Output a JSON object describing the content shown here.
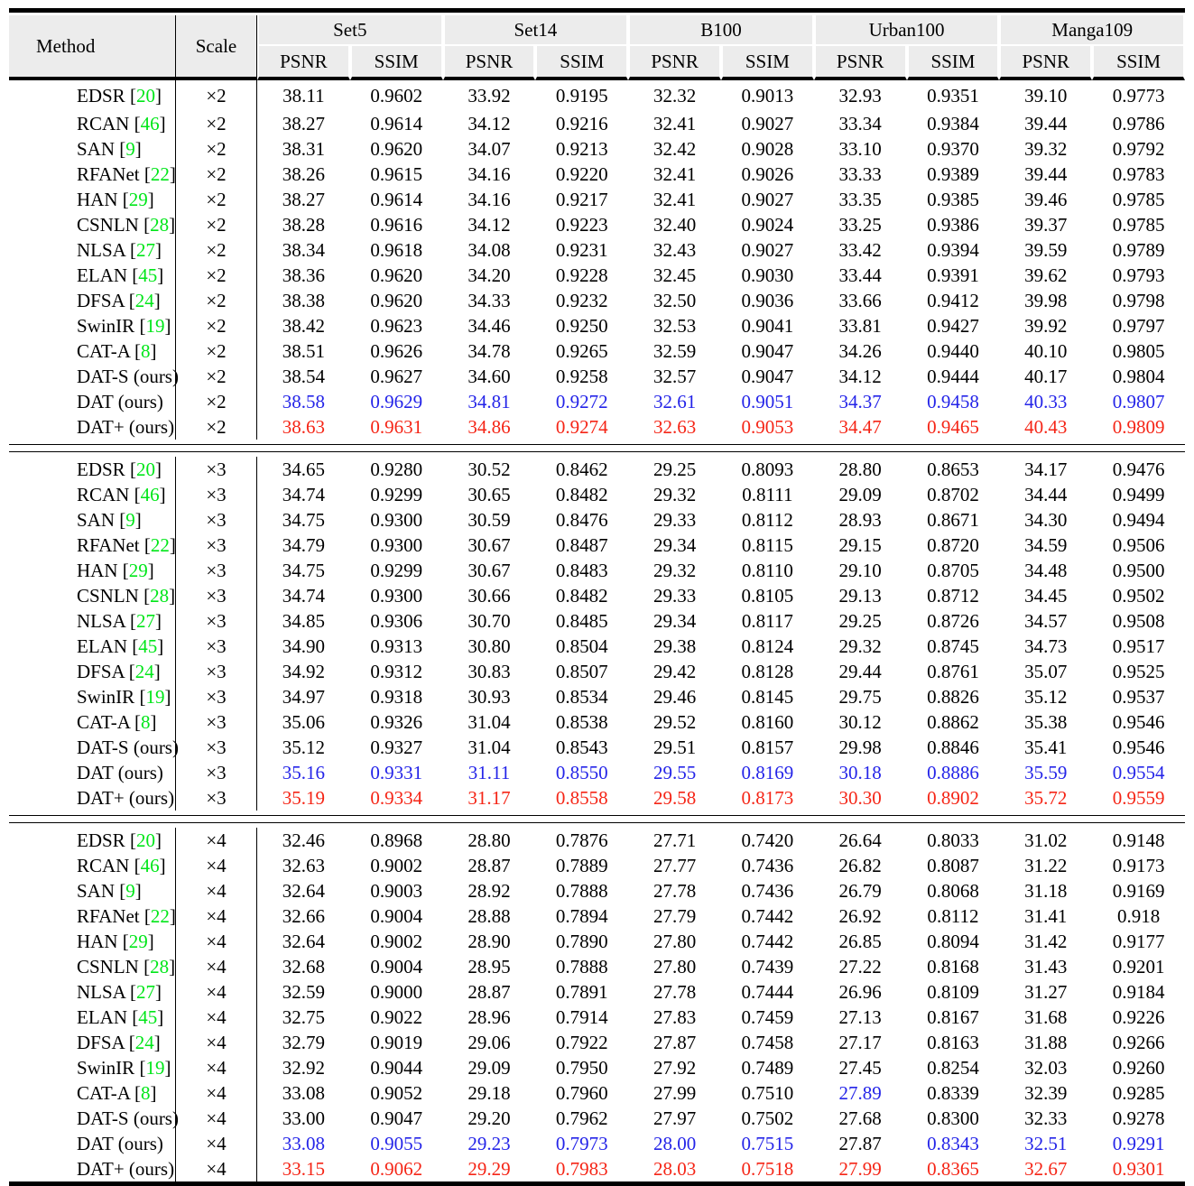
{
  "table": {
    "header": {
      "method": "Method",
      "scale": "Scale",
      "groups": [
        "Set5",
        "Set14",
        "B100",
        "Urban100",
        "Manga109"
      ],
      "metrics": [
        "PSNR",
        "SSIM"
      ]
    },
    "colors": {
      "best": "#f52516",
      "second": "#2424e8",
      "citation": "#00e619",
      "header_bg": "#ececec",
      "rule": "#000000"
    },
    "legend_note": {
      "best_style": "red = best",
      "second_style": "blue = second best"
    },
    "blocks": [
      {
        "scale": "×2",
        "rows": [
          {
            "method": "EDSR",
            "cite": "20",
            "style": "normal",
            "values": [
              "38.11",
              "0.9602",
              "33.92",
              "0.9195",
              "32.32",
              "0.9013",
              "32.93",
              "0.9351",
              "39.10",
              "0.9773"
            ]
          },
          {
            "method": "RCAN",
            "cite": "46",
            "style": "normal",
            "values": [
              "38.27",
              "0.9614",
              "34.12",
              "0.9216",
              "32.41",
              "0.9027",
              "33.34",
              "0.9384",
              "39.44",
              "0.9786"
            ]
          },
          {
            "method": "SAN",
            "cite": "9",
            "style": "normal",
            "values": [
              "38.31",
              "0.9620",
              "34.07",
              "0.9213",
              "32.42",
              "0.9028",
              "33.10",
              "0.9370",
              "39.32",
              "0.9792"
            ]
          },
          {
            "method": "RFANet",
            "cite": "22",
            "style": "normal",
            "values": [
              "38.26",
              "0.9615",
              "34.16",
              "0.9220",
              "32.41",
              "0.9026",
              "33.33",
              "0.9389",
              "39.44",
              "0.9783"
            ]
          },
          {
            "method": "HAN",
            "cite": "29",
            "style": "normal",
            "values": [
              "38.27",
              "0.9614",
              "34.16",
              "0.9217",
              "32.41",
              "0.9027",
              "33.35",
              "0.9385",
              "39.46",
              "0.9785"
            ]
          },
          {
            "method": "CSNLN",
            "cite": "28",
            "style": "normal",
            "values": [
              "38.28",
              "0.9616",
              "34.12",
              "0.9223",
              "32.40",
              "0.9024",
              "33.25",
              "0.9386",
              "39.37",
              "0.9785"
            ]
          },
          {
            "method": "NLSA",
            "cite": "27",
            "style": "normal",
            "values": [
              "38.34",
              "0.9618",
              "34.08",
              "0.9231",
              "32.43",
              "0.9027",
              "33.42",
              "0.9394",
              "39.59",
              "0.9789"
            ]
          },
          {
            "method": "ELAN",
            "cite": "45",
            "style": "normal",
            "values": [
              "38.36",
              "0.9620",
              "34.20",
              "0.9228",
              "32.45",
              "0.9030",
              "33.44",
              "0.9391",
              "39.62",
              "0.9793"
            ]
          },
          {
            "method": "DFSA",
            "cite": "24",
            "style": "normal",
            "values": [
              "38.38",
              "0.9620",
              "34.33",
              "0.9232",
              "32.50",
              "0.9036",
              "33.66",
              "0.9412",
              "39.98",
              "0.9798"
            ]
          },
          {
            "method": "SwinIR",
            "cite": "19",
            "style": "normal",
            "values": [
              "38.42",
              "0.9623",
              "34.46",
              "0.9250",
              "32.53",
              "0.9041",
              "33.81",
              "0.9427",
              "39.92",
              "0.9797"
            ]
          },
          {
            "method": "CAT-A",
            "cite": "8",
            "style": "normal",
            "values": [
              "38.51",
              "0.9626",
              "34.78",
              "0.9265",
              "32.59",
              "0.9047",
              "34.26",
              "0.9440",
              "40.10",
              "0.9805"
            ]
          },
          {
            "method": "DAT-S (ours)",
            "cite": null,
            "style": "normal",
            "values": [
              "38.54",
              "0.9627",
              "34.60",
              "0.9258",
              "32.57",
              "0.9047",
              "34.12",
              "0.9444",
              "40.17",
              "0.9804"
            ]
          },
          {
            "method": "DAT (ours)",
            "cite": null,
            "style": "second",
            "values": [
              "38.58",
              "0.9629",
              "34.81",
              "0.9272",
              "32.61",
              "0.9051",
              "34.37",
              "0.9458",
              "40.33",
              "0.9807"
            ]
          },
          {
            "method": "DAT+ (ours)",
            "cite": null,
            "style": "best",
            "values": [
              "38.63",
              "0.9631",
              "34.86",
              "0.9274",
              "32.63",
              "0.9053",
              "34.47",
              "0.9465",
              "40.43",
              "0.9809"
            ]
          }
        ]
      },
      {
        "scale": "×3",
        "rows": [
          {
            "method": "EDSR",
            "cite": "20",
            "style": "normal",
            "values": [
              "34.65",
              "0.9280",
              "30.52",
              "0.8462",
              "29.25",
              "0.8093",
              "28.80",
              "0.8653",
              "34.17",
              "0.9476"
            ]
          },
          {
            "method": "RCAN",
            "cite": "46",
            "style": "normal",
            "values": [
              "34.74",
              "0.9299",
              "30.65",
              "0.8482",
              "29.32",
              "0.8111",
              "29.09",
              "0.8702",
              "34.44",
              "0.9499"
            ]
          },
          {
            "method": "SAN",
            "cite": "9",
            "style": "normal",
            "values": [
              "34.75",
              "0.9300",
              "30.59",
              "0.8476",
              "29.33",
              "0.8112",
              "28.93",
              "0.8671",
              "34.30",
              "0.9494"
            ]
          },
          {
            "method": "RFANet",
            "cite": "22",
            "style": "normal",
            "values": [
              "34.79",
              "0.9300",
              "30.67",
              "0.8487",
              "29.34",
              "0.8115",
              "29.15",
              "0.8720",
              "34.59",
              "0.9506"
            ]
          },
          {
            "method": "HAN",
            "cite": "29",
            "style": "normal",
            "values": [
              "34.75",
              "0.9299",
              "30.67",
              "0.8483",
              "29.32",
              "0.8110",
              "29.10",
              "0.8705",
              "34.48",
              "0.9500"
            ]
          },
          {
            "method": "CSNLN",
            "cite": "28",
            "style": "normal",
            "values": [
              "34.74",
              "0.9300",
              "30.66",
              "0.8482",
              "29.33",
              "0.8105",
              "29.13",
              "0.8712",
              "34.45",
              "0.9502"
            ]
          },
          {
            "method": "NLSA",
            "cite": "27",
            "style": "normal",
            "values": [
              "34.85",
              "0.9306",
              "30.70",
              "0.8485",
              "29.34",
              "0.8117",
              "29.25",
              "0.8726",
              "34.57",
              "0.9508"
            ]
          },
          {
            "method": "ELAN",
            "cite": "45",
            "style": "normal",
            "values": [
              "34.90",
              "0.9313",
              "30.80",
              "0.8504",
              "29.38",
              "0.8124",
              "29.32",
              "0.8745",
              "34.73",
              "0.9517"
            ]
          },
          {
            "method": "DFSA",
            "cite": "24",
            "style": "normal",
            "values": [
              "34.92",
              "0.9312",
              "30.83",
              "0.8507",
              "29.42",
              "0.8128",
              "29.44",
              "0.8761",
              "35.07",
              "0.9525"
            ]
          },
          {
            "method": "SwinIR",
            "cite": "19",
            "style": "normal",
            "values": [
              "34.97",
              "0.9318",
              "30.93",
              "0.8534",
              "29.46",
              "0.8145",
              "29.75",
              "0.8826",
              "35.12",
              "0.9537"
            ]
          },
          {
            "method": "CAT-A",
            "cite": "8",
            "style": "normal",
            "values": [
              "35.06",
              "0.9326",
              "31.04",
              "0.8538",
              "29.52",
              "0.8160",
              "30.12",
              "0.8862",
              "35.38",
              "0.9546"
            ]
          },
          {
            "method": "DAT-S (ours)",
            "cite": null,
            "style": "normal",
            "values": [
              "35.12",
              "0.9327",
              "31.04",
              "0.8543",
              "29.51",
              "0.8157",
              "29.98",
              "0.8846",
              "35.41",
              "0.9546"
            ]
          },
          {
            "method": "DAT (ours)",
            "cite": null,
            "style": "second",
            "values": [
              "35.16",
              "0.9331",
              "31.11",
              "0.8550",
              "29.55",
              "0.8169",
              "30.18",
              "0.8886",
              "35.59",
              "0.9554"
            ]
          },
          {
            "method": "DAT+ (ours)",
            "cite": null,
            "style": "best",
            "values": [
              "35.19",
              "0.9334",
              "31.17",
              "0.8558",
              "29.58",
              "0.8173",
              "30.30",
              "0.8902",
              "35.72",
              "0.9559"
            ]
          }
        ]
      },
      {
        "scale": "×4",
        "rows": [
          {
            "method": "EDSR",
            "cite": "20",
            "style": "normal",
            "values": [
              "32.46",
              "0.8968",
              "28.80",
              "0.7876",
              "27.71",
              "0.7420",
              "26.64",
              "0.8033",
              "31.02",
              "0.9148"
            ]
          },
          {
            "method": "RCAN",
            "cite": "46",
            "style": "normal",
            "values": [
              "32.63",
              "0.9002",
              "28.87",
              "0.7889",
              "27.77",
              "0.7436",
              "26.82",
              "0.8087",
              "31.22",
              "0.9173"
            ]
          },
          {
            "method": "SAN",
            "cite": "9",
            "style": "normal",
            "values": [
              "32.64",
              "0.9003",
              "28.92",
              "0.7888",
              "27.78",
              "0.7436",
              "26.79",
              "0.8068",
              "31.18",
              "0.9169"
            ]
          },
          {
            "method": "RFANet",
            "cite": "22",
            "style": "normal",
            "values": [
              "32.66",
              "0.9004",
              "28.88",
              "0.7894",
              "27.79",
              "0.7442",
              "26.92",
              "0.8112",
              "31.41",
              "0.918"
            ]
          },
          {
            "method": "HAN",
            "cite": "29",
            "style": "normal",
            "values": [
              "32.64",
              "0.9002",
              "28.90",
              "0.7890",
              "27.80",
              "0.7442",
              "26.85",
              "0.8094",
              "31.42",
              "0.9177"
            ]
          },
          {
            "method": "CSNLN",
            "cite": "28",
            "style": "normal",
            "values": [
              "32.68",
              "0.9004",
              "28.95",
              "0.7888",
              "27.80",
              "0.7439",
              "27.22",
              "0.8168",
              "31.43",
              "0.9201"
            ]
          },
          {
            "method": "NLSA",
            "cite": "27",
            "style": "normal",
            "values": [
              "32.59",
              "0.9000",
              "28.87",
              "0.7891",
              "27.78",
              "0.7444",
              "26.96",
              "0.8109",
              "31.27",
              "0.9184"
            ]
          },
          {
            "method": "ELAN",
            "cite": "45",
            "style": "normal",
            "values": [
              "32.75",
              "0.9022",
              "28.96",
              "0.7914",
              "27.83",
              "0.7459",
              "27.13",
              "0.8167",
              "31.68",
              "0.9226"
            ]
          },
          {
            "method": "DFSA",
            "cite": "24",
            "style": "normal",
            "values": [
              "32.79",
              "0.9019",
              "29.06",
              "0.7922",
              "27.87",
              "0.7458",
              "27.17",
              "0.8163",
              "31.88",
              "0.9266"
            ]
          },
          {
            "method": "SwinIR",
            "cite": "19",
            "style": "normal",
            "values": [
              "32.92",
              "0.9044",
              "29.09",
              "0.7950",
              "27.92",
              "0.7489",
              "27.45",
              "0.8254",
              "32.03",
              "0.9260"
            ]
          },
          {
            "method": "CAT-A",
            "cite": "8",
            "style": "normal",
            "overrides": {
              "6": "second"
            },
            "values": [
              "33.08",
              "0.9052",
              "29.18",
              "0.7960",
              "27.99",
              "0.7510",
              "27.89",
              "0.8339",
              "32.39",
              "0.9285"
            ]
          },
          {
            "method": "DAT-S (ours)",
            "cite": null,
            "style": "normal",
            "values": [
              "33.00",
              "0.9047",
              "29.20",
              "0.7962",
              "27.97",
              "0.7502",
              "27.68",
              "0.8300",
              "32.33",
              "0.9278"
            ]
          },
          {
            "method": "DAT (ours)",
            "cite": null,
            "style": "second",
            "overrides": {
              "6": "normal"
            },
            "values": [
              "33.08",
              "0.9055",
              "29.23",
              "0.7973",
              "28.00",
              "0.7515",
              "27.87",
              "0.8343",
              "32.51",
              "0.9291"
            ]
          },
          {
            "method": "DAT+ (ours)",
            "cite": null,
            "style": "best",
            "values": [
              "33.15",
              "0.9062",
              "29.29",
              "0.7983",
              "28.03",
              "0.7518",
              "27.99",
              "0.8365",
              "32.67",
              "0.9301"
            ]
          }
        ]
      }
    ]
  }
}
